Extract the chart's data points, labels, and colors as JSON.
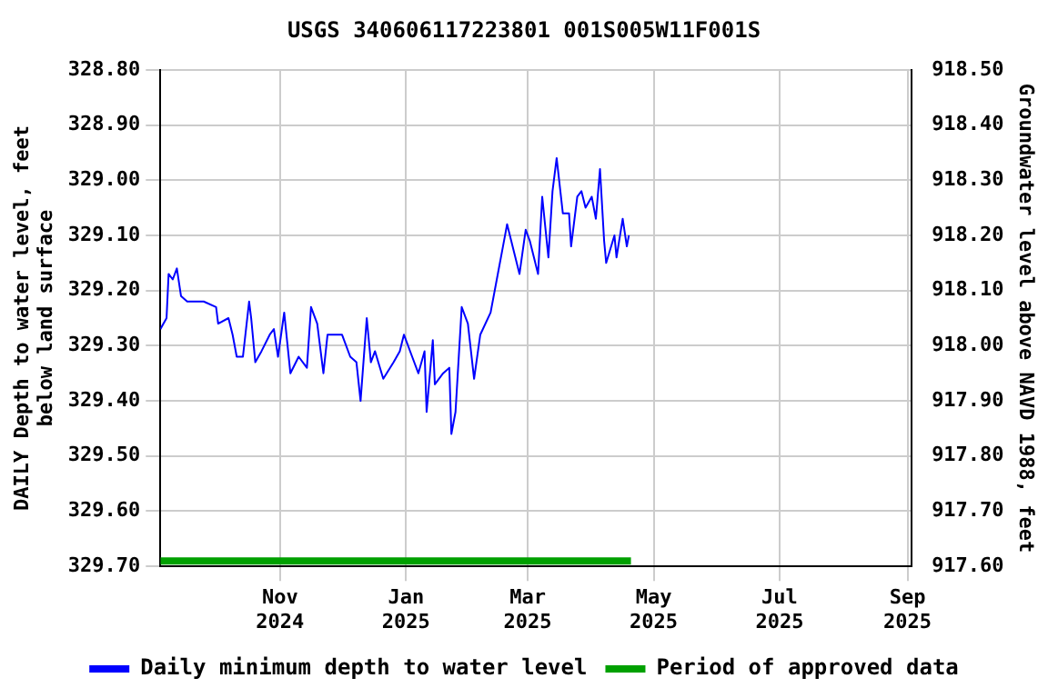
{
  "chart_data": {
    "type": "line",
    "title": "USGS 340606117223801 001S005W11F001S",
    "ylabel": "DAILY Depth to water level, feet below land surface",
    "y2label": "Groundwater level above NAVD 1988, feet",
    "x": [
      "2024-09-04",
      "2024-09-07",
      "2024-09-08",
      "2024-09-10",
      "2024-09-12",
      "2024-09-14",
      "2024-09-17",
      "2024-09-22",
      "2024-09-25",
      "2024-10-01",
      "2024-10-02",
      "2024-10-07",
      "2024-10-09",
      "2024-10-11",
      "2024-10-14",
      "2024-10-17",
      "2024-10-18",
      "2024-10-20",
      "2024-10-23",
      "2024-10-27",
      "2024-10-29",
      "2024-10-31",
      "2024-11-03",
      "2024-11-06",
      "2024-11-10",
      "2024-11-14",
      "2024-11-16",
      "2024-11-19",
      "2024-11-22",
      "2024-11-24",
      "2024-11-28",
      "2024-12-01",
      "2024-12-05",
      "2024-12-08",
      "2024-12-10",
      "2024-12-13",
      "2024-12-15",
      "2024-12-17",
      "2024-12-21",
      "2024-12-26",
      "2024-12-29",
      "2024-12-31",
      "2025-01-04",
      "2025-01-07",
      "2025-01-10",
      "2025-01-11",
      "2025-01-14",
      "2025-01-15",
      "2025-01-19",
      "2025-01-22",
      "2025-01-23",
      "2025-01-25",
      "2025-01-28",
      "2025-01-31",
      "2025-02-03",
      "2025-02-06",
      "2025-02-11",
      "2025-02-14",
      "2025-02-17",
      "2025-02-19",
      "2025-02-21",
      "2025-02-25",
      "2025-02-28",
      "2025-03-02",
      "2025-03-06",
      "2025-03-08",
      "2025-03-11",
      "2025-03-13",
      "2025-03-15",
      "2025-03-18",
      "2025-03-21",
      "2025-03-22",
      "2025-03-25",
      "2025-03-27",
      "2025-03-29",
      "2025-04-01",
      "2025-04-03",
      "2025-04-05",
      "2025-04-07",
      "2025-04-08",
      "2025-04-12",
      "2025-04-13",
      "2025-04-16",
      "2025-04-18",
      "2025-04-19"
    ],
    "series": [
      {
        "name": "Daily minimum depth to water level",
        "color": "#0000ff",
        "values": [
          329.27,
          329.25,
          329.17,
          329.18,
          329.16,
          329.21,
          329.22,
          329.22,
          329.22,
          329.23,
          329.26,
          329.25,
          329.28,
          329.32,
          329.32,
          329.22,
          329.25,
          329.33,
          329.31,
          329.28,
          329.27,
          329.32,
          329.24,
          329.35,
          329.32,
          329.34,
          329.23,
          329.26,
          329.35,
          329.28,
          329.28,
          329.28,
          329.32,
          329.33,
          329.4,
          329.25,
          329.33,
          329.31,
          329.36,
          329.33,
          329.31,
          329.28,
          329.32,
          329.35,
          329.31,
          329.42,
          329.29,
          329.37,
          329.35,
          329.34,
          329.46,
          329.42,
          329.23,
          329.26,
          329.36,
          329.28,
          329.24,
          329.18,
          329.12,
          329.08,
          329.11,
          329.17,
          329.09,
          329.11,
          329.17,
          329.03,
          329.14,
          329.02,
          328.96,
          329.06,
          329.06,
          329.12,
          329.03,
          329.02,
          329.05,
          329.03,
          329.07,
          328.98,
          329.11,
          329.15,
          329.1,
          329.14,
          329.07,
          329.12,
          329.1
        ]
      },
      {
        "name": "Period of approved data",
        "type": "line",
        "color": "#00a000",
        "x": [
          "2024-09-04",
          "2025-04-20"
        ],
        "values": [
          329.69,
          329.69
        ]
      }
    ],
    "xlim": [
      "2024-09-04",
      "2025-09-03"
    ],
    "xticks": [
      {
        "value": "2024-11-01",
        "label": "Nov 2024"
      },
      {
        "value": "2025-01-01",
        "label": "Jan 2025"
      },
      {
        "value": "2025-03-01",
        "label": "Mar 2025"
      },
      {
        "value": "2025-05-01",
        "label": "May 2025"
      },
      {
        "value": "2025-07-01",
        "label": "Jul 2025"
      },
      {
        "value": "2025-09-01",
        "label": "Sep 2025"
      }
    ],
    "ylim": [
      329.7,
      328.8
    ],
    "yticks": [
      {
        "value": 328.8,
        "label": "328.80"
      },
      {
        "value": 328.9,
        "label": "328.90"
      },
      {
        "value": 329.0,
        "label": "329.00"
      },
      {
        "value": 329.1,
        "label": "329.10"
      },
      {
        "value": 329.2,
        "label": "329.20"
      },
      {
        "value": 329.3,
        "label": "329.30"
      },
      {
        "value": 329.4,
        "label": "329.40"
      },
      {
        "value": 329.5,
        "label": "329.50"
      },
      {
        "value": 329.6,
        "label": "329.60"
      },
      {
        "value": 329.7,
        "label": "329.70"
      }
    ],
    "y2lim": [
      917.6,
      918.5
    ],
    "y2ticks": [
      {
        "value": 918.5,
        "label": "918.50"
      },
      {
        "value": 918.4,
        "label": "918.40"
      },
      {
        "value": 918.3,
        "label": "918.30"
      },
      {
        "value": 918.2,
        "label": "918.20"
      },
      {
        "value": 918.1,
        "label": "918.10"
      },
      {
        "value": 918.0,
        "label": "918.00"
      },
      {
        "value": 917.9,
        "label": "917.90"
      },
      {
        "value": 917.8,
        "label": "917.80"
      },
      {
        "value": 917.7,
        "label": "917.70"
      },
      {
        "value": 917.6,
        "label": "917.60"
      }
    ],
    "grid": true,
    "legend": "bottom",
    "marker": "none",
    "line_style": "solid"
  }
}
